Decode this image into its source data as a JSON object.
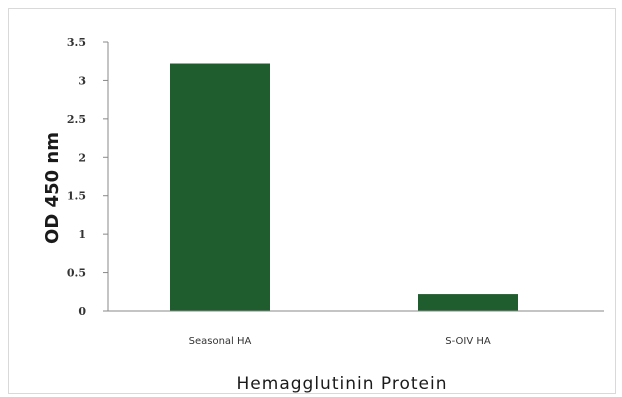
{
  "chart_data": {
    "type": "bar",
    "title": "",
    "xlabel": "Hemagglutinin Protein",
    "ylabel": "OD 450 nm",
    "categories": [
      "Seasonal HA",
      "S-OIV HA"
    ],
    "values": [
      3.22,
      0.22
    ],
    "ylim": [
      0,
      3.5
    ],
    "yticks": [
      0,
      0.5,
      1,
      1.5,
      2,
      2.5,
      3,
      3.5
    ],
    "ytick_labels": [
      "0",
      "0.5",
      "1",
      "1.5",
      "2",
      "2.5",
      "3",
      "3.5"
    ],
    "grid": false,
    "legend": "none",
    "bar_color": "#1f5c2e"
  }
}
